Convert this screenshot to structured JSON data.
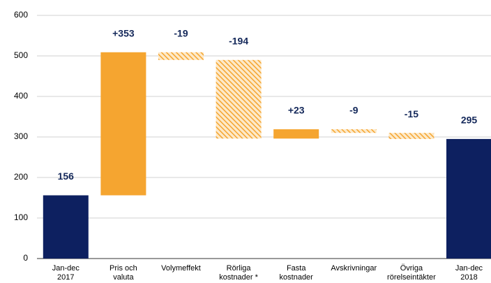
{
  "chart_data": {
    "type": "waterfall",
    "categories": [
      [
        "Jan-dec",
        "2017"
      ],
      [
        "Pris och",
        "valuta"
      ],
      [
        "Volymeffekt"
      ],
      [
        "Rörliga",
        "kostnader *"
      ],
      [
        "Fasta",
        "kostnader"
      ],
      [
        "Avskrivningar"
      ],
      [
        "Övriga",
        "rörelseintäkter"
      ],
      [
        "Jan-dec",
        "2018"
      ]
    ],
    "values": [
      156,
      353,
      -19,
      -194,
      23,
      -9,
      -15,
      295
    ],
    "value_labels": [
      "156",
      "+353",
      "-19",
      "-194",
      "+23",
      "-9",
      "-15",
      "295"
    ],
    "total_color": "#0d2060",
    "increase_color": "#f5a530",
    "decrease_color": "#f5a530",
    "ylim": [
      0,
      600
    ],
    "yticks": [
      0,
      100,
      200,
      300,
      400,
      500,
      600
    ],
    "grid": true
  }
}
